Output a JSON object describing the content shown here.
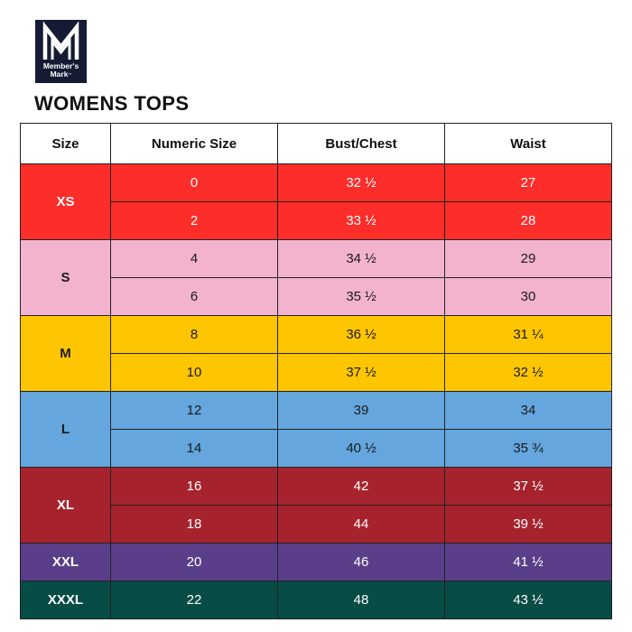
{
  "brand": {
    "line1": "Member's",
    "line2": "Mark",
    "tm": "™"
  },
  "title": "WOMENS TOPS",
  "headers": [
    "Size",
    "Numeric Size",
    "Bust/Chest",
    "Waist"
  ],
  "groups": [
    {
      "size": "XS",
      "color": "#fd2d2a",
      "text_color": "#ffffff",
      "rows": [
        {
          "numeric": "0",
          "bust": "32 ½",
          "waist": "27"
        },
        {
          "numeric": "2",
          "bust": "33 ½",
          "waist": "28"
        }
      ]
    },
    {
      "size": "S",
      "color": "#f3b3cf",
      "text_color": "#1a1a1a",
      "rows": [
        {
          "numeric": "4",
          "bust": "34 ½",
          "waist": "29"
        },
        {
          "numeric": "6",
          "bust": "35 ½",
          "waist": "30"
        }
      ]
    },
    {
      "size": "M",
      "color": "#fec601",
      "text_color": "#1a1a1a",
      "rows": [
        {
          "numeric": "8",
          "bust": "36 ½",
          "waist": "31 ¼"
        },
        {
          "numeric": "10",
          "bust": "37 ½",
          "waist": "32 ½"
        }
      ]
    },
    {
      "size": "L",
      "color": "#64a6dd",
      "text_color": "#1a1a1a",
      "rows": [
        {
          "numeric": "12",
          "bust": "39",
          "waist": "34"
        },
        {
          "numeric": "14",
          "bust": "40 ½",
          "waist": "35 ¾"
        }
      ]
    },
    {
      "size": "XL",
      "color": "#a6232d",
      "text_color": "#ffffff",
      "rows": [
        {
          "numeric": "16",
          "bust": "42",
          "waist": "37 ½"
        },
        {
          "numeric": "18",
          "bust": "44",
          "waist": "39 ½"
        }
      ]
    },
    {
      "size": "XXL",
      "color": "#5a3e8a",
      "text_color": "#ffffff",
      "rows": [
        {
          "numeric": "20",
          "bust": "46",
          "waist": "41 ½"
        }
      ]
    },
    {
      "size": "XXXL",
      "color": "#074c45",
      "text_color": "#ffffff",
      "rows": [
        {
          "numeric": "22",
          "bust": "48",
          "waist": "43 ½"
        }
      ]
    }
  ]
}
